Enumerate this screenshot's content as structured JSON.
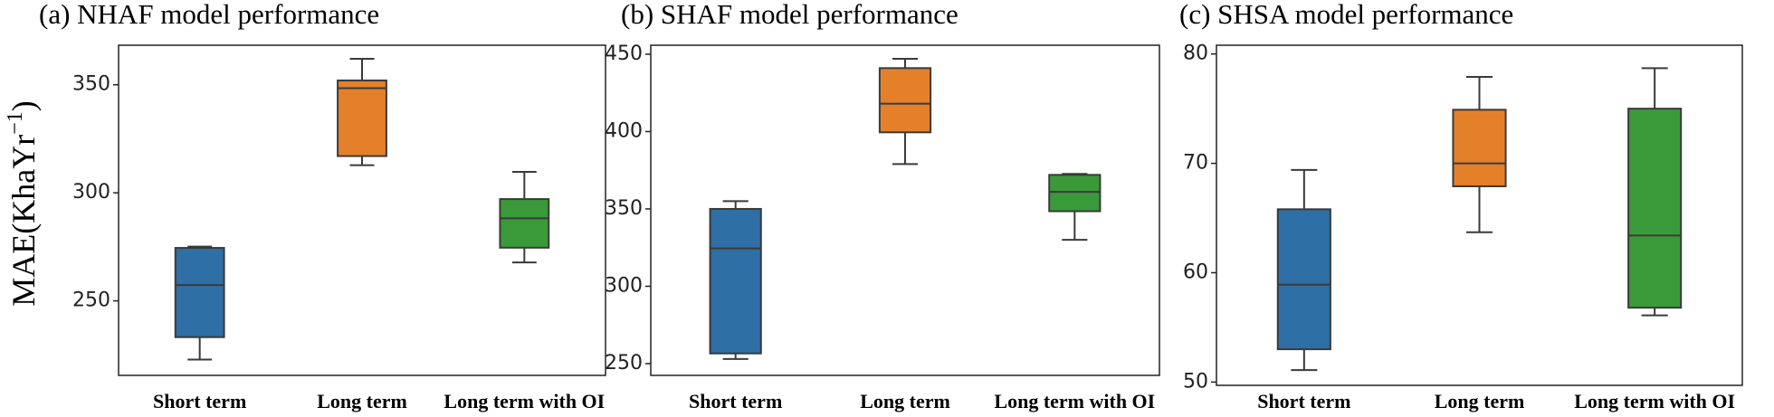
{
  "chart_data": [
    {
      "type": "box",
      "title": "(a) NHAF model performance",
      "ylabel": {
        "text": "MAE(KhaYr",
        "superscript": "−1",
        "close": ")"
      },
      "categories": [
        "Short term",
        "Long term",
        "Long term with OI"
      ],
      "colors": [
        "#2e6fa5",
        "#e5802a",
        "#3a9a3a"
      ],
      "boxes": [
        {
          "min": 222.8,
          "q1": 233.2,
          "median": 257.3,
          "q3": 274.5,
          "max": 275.1
        },
        {
          "min": 312.8,
          "q1": 317,
          "median": 348.4,
          "q3": 352,
          "max": 362
        },
        {
          "min": 267.8,
          "q1": 274.6,
          "median": 288.2,
          "q3": 297.1,
          "max": 309.7
        }
      ],
      "ylim": [
        215.5,
        368.3
      ],
      "yticks": [
        250,
        300,
        350
      ]
    },
    {
      "type": "box",
      "title": "(b) SHAF model performance",
      "categories": [
        "Short term",
        "Long term",
        "Long term with OI"
      ],
      "colors": [
        "#2e6fa5",
        "#e5802a",
        "#3a9a3a"
      ],
      "boxes": [
        {
          "min": 253,
          "q1": 256.6,
          "median": 324.5,
          "q3": 350,
          "max": 355
        },
        {
          "min": 379,
          "q1": 399.5,
          "median": 418,
          "q3": 441,
          "max": 447
        },
        {
          "min": 330,
          "q1": 348.5,
          "median": 361,
          "q3": 372,
          "max": 372.6
        }
      ],
      "ylim": [
        242.4,
        455.8
      ],
      "yticks": [
        250,
        300,
        350,
        400,
        450
      ]
    },
    {
      "type": "box",
      "title": "(c) SHSA model performance",
      "categories": [
        "Short term",
        "Long term",
        "Long term with OI"
      ],
      "colors": [
        "#2e6fa5",
        "#e5802a",
        "#3a9a3a"
      ],
      "boxes": [
        {
          "min": 51.1,
          "q1": 53,
          "median": 58.9,
          "q3": 65.8,
          "max": 69.4
        },
        {
          "min": 63.7,
          "q1": 67.9,
          "median": 70,
          "q3": 74.9,
          "max": 77.9
        },
        {
          "min": 56.1,
          "q1": 56.8,
          "median": 63.4,
          "q3": 75,
          "max": 78.7
        }
      ],
      "ylim": [
        49.7,
        80.8
      ],
      "yticks": [
        50,
        60,
        70,
        80
      ]
    }
  ]
}
